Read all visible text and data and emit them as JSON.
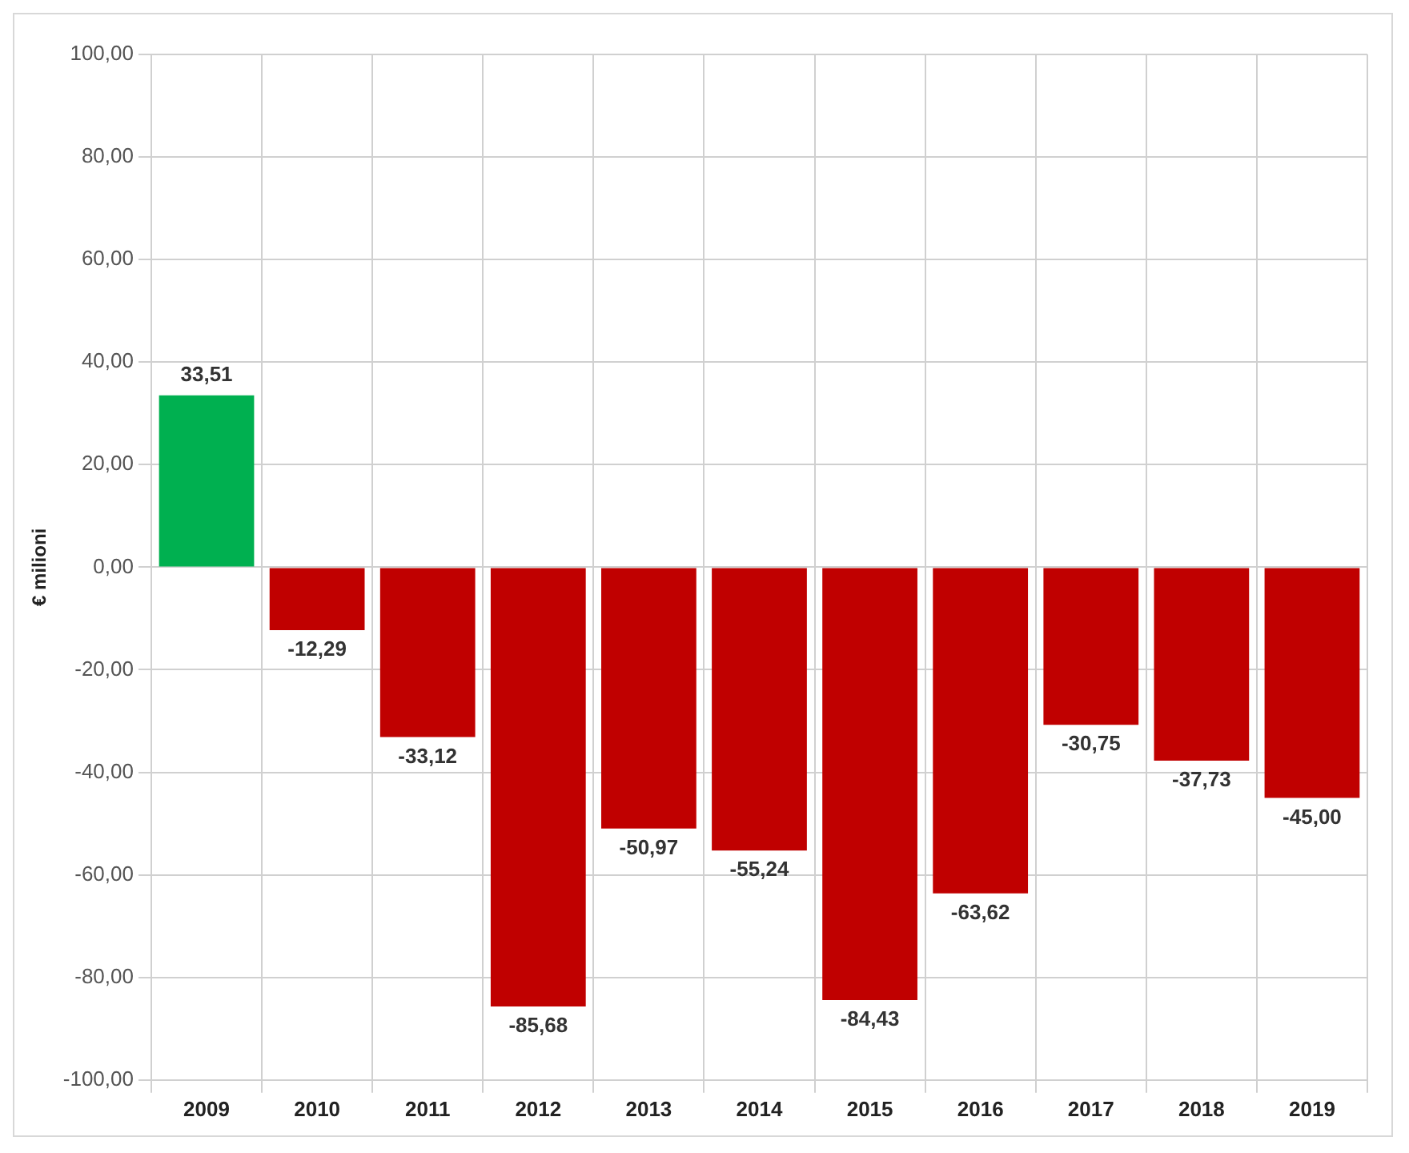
{
  "chart_data": {
    "type": "bar",
    "ylabel": "€ milioni",
    "categories": [
      "2009",
      "2010",
      "2011",
      "2012",
      "2013",
      "2014",
      "2015",
      "2016",
      "2017",
      "2018",
      "2019"
    ],
    "values": [
      33.51,
      -12.29,
      -33.12,
      -85.68,
      -50.97,
      -55.24,
      -84.43,
      -63.62,
      -30.75,
      -37.73,
      -45.0
    ],
    "colors": [
      "#00b050",
      "#c00000",
      "#c00000",
      "#c00000",
      "#c00000",
      "#c00000",
      "#c00000",
      "#c00000",
      "#c00000",
      "#c00000",
      "#c00000"
    ],
    "value_labels": [
      "33,51",
      "-12,29",
      "-33,12",
      "-85,68",
      "-50,97",
      "-55,24",
      "-84,43",
      "-63,62",
      "-30,75",
      "-37,73",
      "-45,00"
    ],
    "ylim": [
      -100,
      100
    ],
    "yticks": [
      {
        "value": -100,
        "label": "-100,00"
      },
      {
        "value": -80,
        "label": "-80,00"
      },
      {
        "value": -60,
        "label": "-60,00"
      },
      {
        "value": -40,
        "label": "-40,00"
      },
      {
        "value": -20,
        "label": "-20,00"
      },
      {
        "value": 0,
        "label": "0,00"
      },
      {
        "value": 20,
        "label": "20,00"
      },
      {
        "value": 40,
        "label": "40,00"
      },
      {
        "value": 60,
        "label": "60,00"
      },
      {
        "value": 80,
        "label": "80,00"
      },
      {
        "value": 100,
        "label": "100,00"
      }
    ],
    "grid": true
  }
}
